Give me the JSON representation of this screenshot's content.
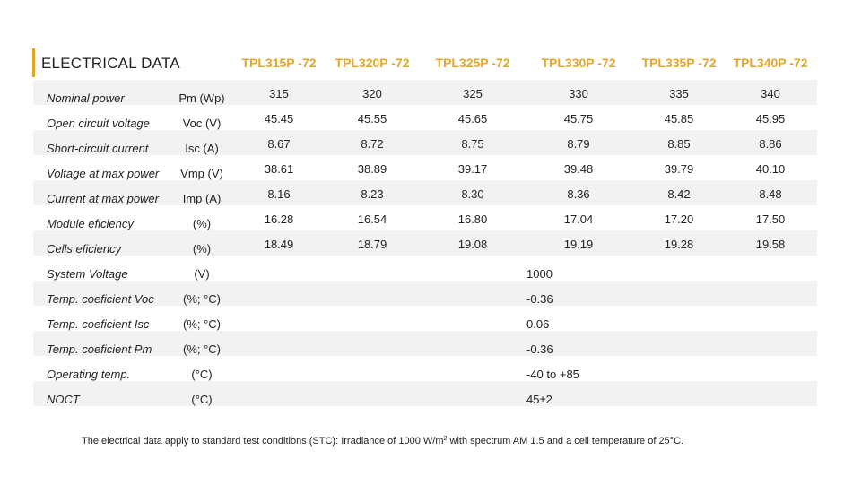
{
  "title": "ELECTRICAL DATA",
  "accent_color": "#e3a72a",
  "models": [
    "TPL315P -72",
    "TPL320P -72",
    "TPL325P -72",
    "TPL330P -72",
    "TPL335P -72",
    "TPL340P -72"
  ],
  "rows": [
    {
      "label": "Nominal power",
      "unit": "Pm (Wp)",
      "values": [
        "315",
        "320",
        "325",
        "330",
        "335",
        "340"
      ]
    },
    {
      "label": "Open circuit voltage",
      "unit": "Voc (V)",
      "values": [
        "45.45",
        "45.55",
        "45.65",
        "45.75",
        "45.85",
        "45.95"
      ]
    },
    {
      "label": "Short-circuit current",
      "unit": "Isc (A)",
      "values": [
        "8.67",
        "8.72",
        "8.75",
        "8.79",
        "8.85",
        "8.86"
      ]
    },
    {
      "label": "Voltage at max power",
      "unit": "Vmp (V)",
      "values": [
        "38.61",
        "38.89",
        "39.17",
        "39.48",
        "39.79",
        "40.10"
      ]
    },
    {
      "label": "Current at max power",
      "unit": "Imp (A)",
      "values": [
        "8.16",
        "8.23",
        "8.30",
        "8.36",
        "8.42",
        "8.48"
      ]
    },
    {
      "label": "Module eficiency",
      "unit": "(%)",
      "values": [
        "16.28",
        "16.54",
        "16.80",
        "17.04",
        "17.20",
        "17.50"
      ]
    },
    {
      "label": "Cells eficiency",
      "unit": "(%)",
      "values": [
        "18.49",
        "18.79",
        "19.08",
        "19.19",
        "19.28",
        "19.58"
      ]
    },
    {
      "label": "System Voltage",
      "unit": "(V)",
      "shared": "1000"
    },
    {
      "label": "Temp. coeficient Voc",
      "unit": "(%; °C)",
      "shared": "-0.36"
    },
    {
      "label": "Temp. coeficient Isc",
      "unit": "(%; °C)",
      "shared": "0.06"
    },
    {
      "label": "Temp. coeficient Pm",
      "unit": "(%; °C)",
      "shared": "-0.36"
    },
    {
      "label": "Operating temp.",
      "unit": "(°C)",
      "shared": "-40 to +85"
    },
    {
      "label": "NOCT",
      "unit": "(°C)",
      "shared": "45±2"
    }
  ],
  "footnote": {
    "before": "The electrical data apply to standard test conditions (STC): Irradiance of 1000 W/m",
    "sup": "2",
    "after": " with spectrum AM 1.5 and a cell temperature of 25°C."
  }
}
